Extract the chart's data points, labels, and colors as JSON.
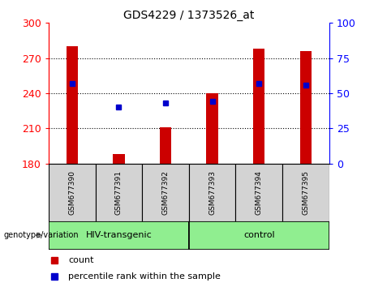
{
  "title": "GDS4229 / 1373526_at",
  "samples": [
    "GSM677390",
    "GSM677391",
    "GSM677392",
    "GSM677393",
    "GSM677394",
    "GSM677395"
  ],
  "group_spans": [
    {
      "label": "HIV-transgenic",
      "start": 0,
      "end": 2
    },
    {
      "label": "control",
      "start": 3,
      "end": 5
    }
  ],
  "bar_baseline": 180,
  "bar_tops": [
    280,
    188,
    211,
    240,
    278,
    276
  ],
  "percentile_values": [
    57,
    40,
    43,
    44,
    57,
    56
  ],
  "ylim_left": [
    180,
    300
  ],
  "ylim_right": [
    0,
    100
  ],
  "yticks_left": [
    180,
    210,
    240,
    270,
    300
  ],
  "yticks_right": [
    0,
    25,
    50,
    75,
    100
  ],
  "bar_color": "#CC0000",
  "percentile_color": "#0000CC",
  "label_count": "count",
  "label_percentile": "percentile rank within the sample",
  "genotype_label": "genotype/variation",
  "bar_width": 0.25,
  "green_color": "#90EE90",
  "gray_color": "#D3D3D3"
}
